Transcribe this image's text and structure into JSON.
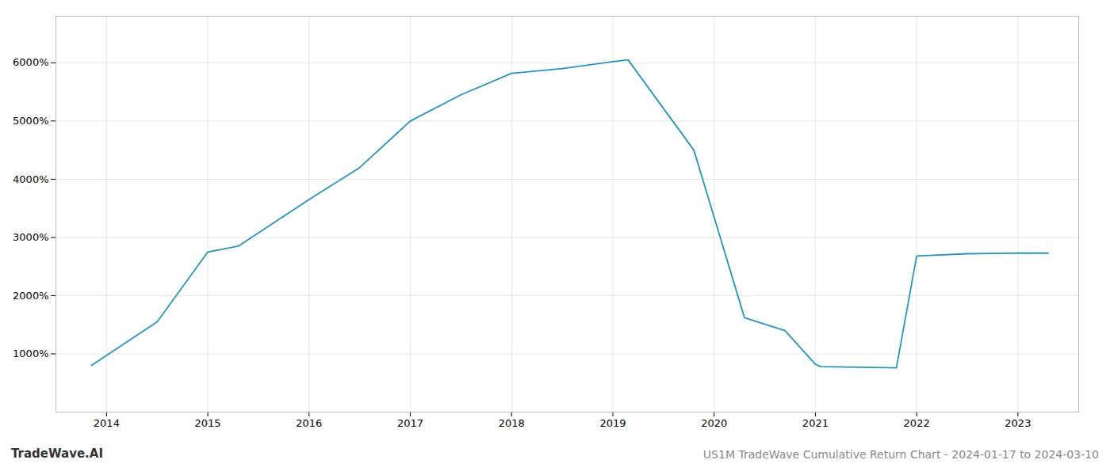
{
  "chart_data": {
    "type": "line",
    "title": "US1M TradeWave Cumulative Return Chart - 2024-01-17 to 2024-03-10",
    "annotations": [
      "TradeWave.AI"
    ],
    "x": [
      2013.85,
      2014.5,
      2015.0,
      2015.3,
      2016.0,
      2016.5,
      2017.0,
      2017.5,
      2018.0,
      2018.5,
      2019.0,
      2019.15,
      2019.8,
      2020.3,
      2020.7,
      2021.0,
      2021.05,
      2021.8,
      2022.0,
      2022.5,
      2023.0,
      2023.3
    ],
    "values": [
      800,
      1550,
      2750,
      2850,
      3650,
      4200,
      5000,
      5450,
      5820,
      5900,
      6020,
      6050,
      4500,
      1620,
      1400,
      820,
      780,
      760,
      2680,
      2720,
      2730,
      2730
    ],
    "color": "#2196c4",
    "xlim": [
      2013.5,
      2023.6
    ],
    "xticks": [
      2014,
      2015,
      2016,
      2017,
      2018,
      2019,
      2020,
      2021,
      2022,
      2023
    ],
    "ylim": [
      0,
      6800
    ],
    "yticks": [
      {
        "value": 1000,
        "label": "1000%"
      },
      {
        "value": 2000,
        "label": "2000%"
      },
      {
        "value": 3000,
        "label": "3000%"
      },
      {
        "value": 4000,
        "label": "4000%"
      },
      {
        "value": 5000,
        "label": "5000%"
      },
      {
        "value": 6000,
        "label": "6000%"
      }
    ],
    "grid": true
  }
}
